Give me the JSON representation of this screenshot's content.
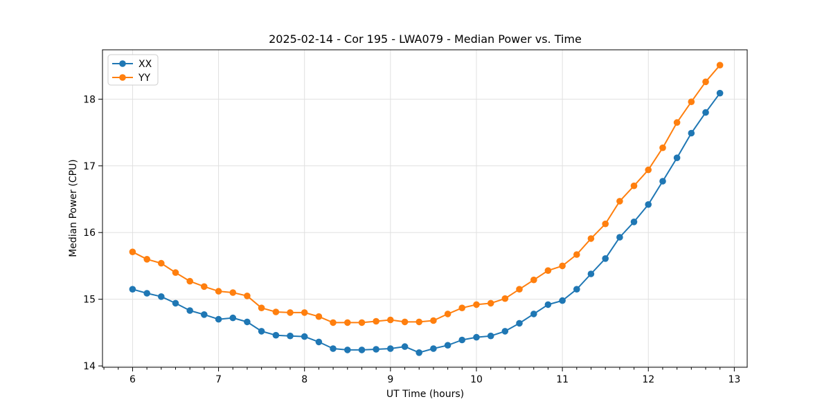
{
  "figure": {
    "background": "#ffffff",
    "spine_color": "#000000",
    "grid_color": "#e0e0e0",
    "tick_color": "#000000"
  },
  "chart_data": {
    "type": "line",
    "title": "2025-02-14 - Cor 195 - LWA079 - Median Power vs. Time",
    "xlabel": "UT Time (hours)",
    "ylabel": "Median Power (CPU)",
    "xlim": [
      5.65,
      13.15
    ],
    "ylim": [
      13.98,
      18.74
    ],
    "x_ticks": [
      6,
      7,
      8,
      9,
      10,
      11,
      12,
      13
    ],
    "y_ticks": [
      14,
      15,
      16,
      17,
      18
    ],
    "x_minor_tick_step": 0.166667,
    "grid": true,
    "legend_position": "upper left",
    "x": [
      6.0,
      6.167,
      6.333,
      6.5,
      6.667,
      6.833,
      7.0,
      7.167,
      7.333,
      7.5,
      7.667,
      7.833,
      8.0,
      8.167,
      8.333,
      8.5,
      8.667,
      8.833,
      9.0,
      9.167,
      9.333,
      9.5,
      9.667,
      9.833,
      10.0,
      10.167,
      10.333,
      10.5,
      10.667,
      10.833,
      11.0,
      11.167,
      11.333,
      11.5,
      11.667,
      11.833,
      12.0,
      12.167,
      12.333,
      12.5,
      12.667,
      12.833
    ],
    "series": [
      {
        "name": "XX",
        "color": "#1f77b4",
        "values": [
          15.15,
          15.09,
          15.04,
          14.94,
          14.83,
          14.77,
          14.7,
          14.72,
          14.66,
          14.52,
          14.46,
          14.45,
          14.44,
          14.36,
          14.26,
          14.24,
          14.24,
          14.25,
          14.26,
          14.29,
          14.2,
          14.26,
          14.31,
          14.39,
          14.43,
          14.45,
          14.52,
          14.64,
          14.78,
          14.92,
          14.98,
          15.15,
          15.38,
          15.61,
          15.93,
          16.16,
          16.42,
          16.77,
          17.12,
          17.49,
          17.8,
          18.09
        ]
      },
      {
        "name": "YY",
        "color": "#ff7f0e",
        "values": [
          15.71,
          15.6,
          15.54,
          15.4,
          15.27,
          15.19,
          15.12,
          15.1,
          15.05,
          14.87,
          14.81,
          14.8,
          14.8,
          14.74,
          14.65,
          14.65,
          14.65,
          14.67,
          14.69,
          14.66,
          14.66,
          14.68,
          14.78,
          14.87,
          14.92,
          14.94,
          15.01,
          15.15,
          15.29,
          15.43,
          15.5,
          15.67,
          15.91,
          16.13,
          16.47,
          16.7,
          16.94,
          17.27,
          17.65,
          17.96,
          18.26,
          18.51
        ]
      }
    ]
  }
}
